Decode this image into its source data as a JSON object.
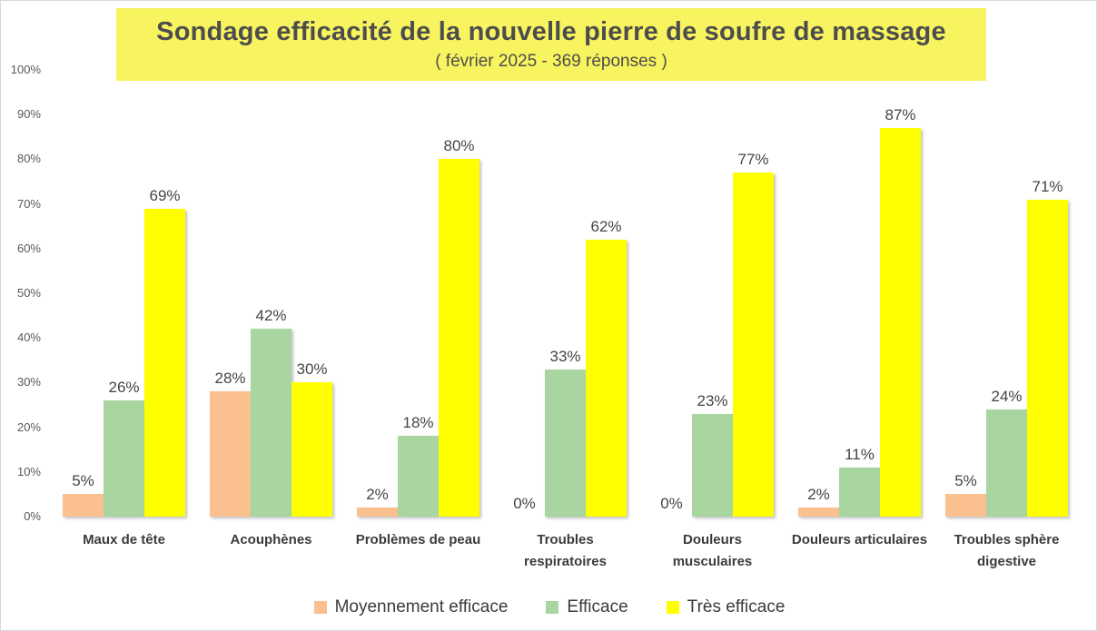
{
  "chart": {
    "title": "Sondage efficacité de la nouvelle pierre de soufre de massage",
    "subtitle": "( février 2025 - 369 réponses )",
    "title_bg_color": "#f8f45f",
    "title_text_color": "#4d4d4d",
    "border_color": "#d9d9d9"
  },
  "chart_data": {
    "type": "bar",
    "title": "Sondage efficacité de la nouvelle pierre de soufre de massage",
    "subtitle": "( février 2025 - 369 réponses )",
    "categories": [
      "Maux de tête",
      "Acouphènes",
      "Problèmes de peau",
      "Troubles respiratoires",
      "Douleurs musculaires",
      "Douleurs articulaires",
      "Troubles sphère digestive"
    ],
    "series": [
      {
        "name": "Moyennement efficace",
        "color": "#fac090",
        "values": [
          5,
          28,
          2,
          0,
          0,
          2,
          5
        ]
      },
      {
        "name": "Efficace",
        "color": "#a9d6a0",
        "values": [
          26,
          42,
          18,
          33,
          23,
          11,
          24
        ]
      },
      {
        "name": "Très efficace",
        "color": "#ffff00",
        "values": [
          69,
          30,
          80,
          62,
          77,
          87,
          71
        ]
      }
    ],
    "ylim": [
      0,
      100
    ],
    "yticks": [
      "0%",
      "10%",
      "20%",
      "30%",
      "40%",
      "50%",
      "60%",
      "70%",
      "80%",
      "90%",
      "100%"
    ],
    "data_label_format": "{v}%",
    "legend_position": "bottom",
    "grid": false
  }
}
